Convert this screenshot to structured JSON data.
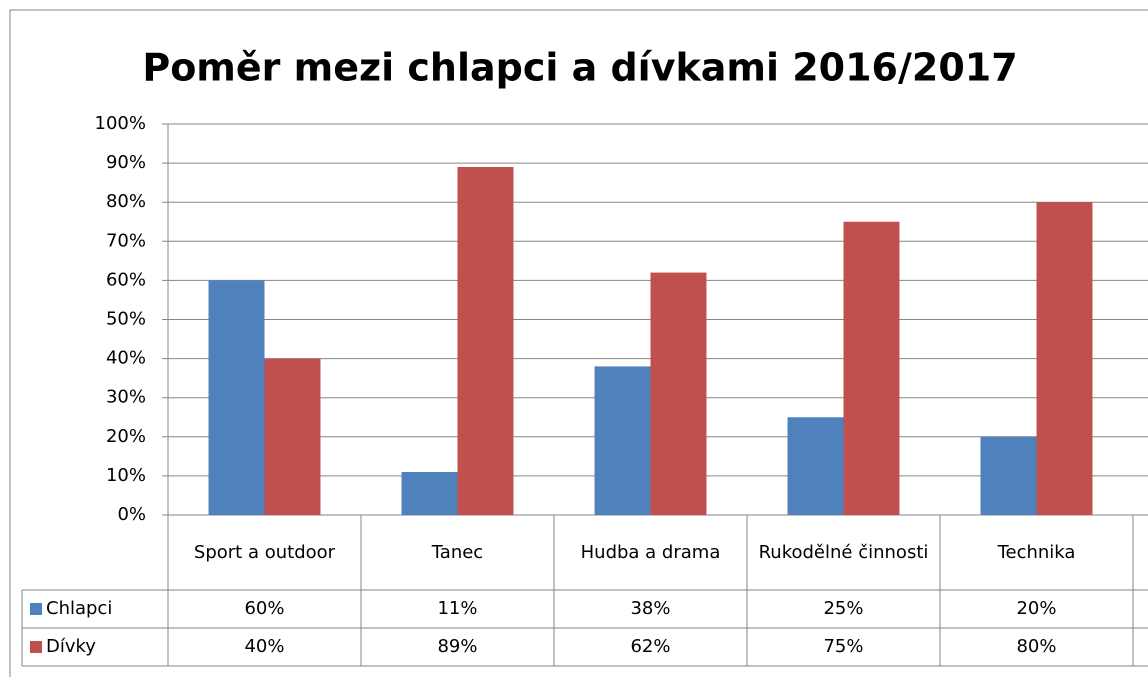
{
  "chart_data": {
    "type": "bar",
    "title": "Poměr mezi chlapci a dívkami 2016/2017",
    "categories": [
      "Sport a outdoor",
      "Tanec",
      "Hudba a drama",
      "Rukodělné činnosti",
      "Technika"
    ],
    "series": [
      {
        "name": "Chlapci",
        "color": "#4f81bd",
        "values": [
          60,
          11,
          38,
          25,
          20
        ],
        "value_labels": [
          "60%",
          "11%",
          "38%",
          "25%",
          "20%"
        ]
      },
      {
        "name": "Dívky",
        "color": "#c0504d",
        "values": [
          40,
          89,
          62,
          75,
          80
        ],
        "value_labels": [
          "40%",
          "89%",
          "62%",
          "75%",
          "80%"
        ]
      }
    ],
    "ylim": [
      0,
      100
    ],
    "yticks": [
      {
        "value": 0,
        "label": "0%"
      },
      {
        "value": 10,
        "label": "10%"
      },
      {
        "value": 20,
        "label": "20%"
      },
      {
        "value": 30,
        "label": "30%"
      },
      {
        "value": 40,
        "label": "40%"
      },
      {
        "value": 50,
        "label": "50%"
      },
      {
        "value": 60,
        "label": "60%"
      },
      {
        "value": 70,
        "label": "70%"
      },
      {
        "value": 80,
        "label": "80%"
      },
      {
        "value": 90,
        "label": "90%"
      },
      {
        "value": 100,
        "label": "100%"
      }
    ],
    "grid": true
  }
}
